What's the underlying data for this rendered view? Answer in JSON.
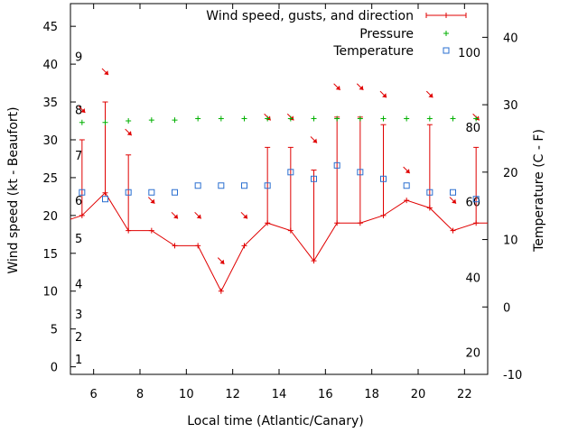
{
  "chart_data": {
    "type": "line",
    "xlabel": "Local time (Atlantic/Canary)",
    "ylabel": "Wind speed (kt - Beaufort)",
    "y2label": "Temperature (C - F)",
    "xlim": [
      5,
      23
    ],
    "ylim": [
      -1,
      48
    ],
    "y2lim": [
      -10,
      45
    ],
    "x_ticks": [
      6,
      8,
      10,
      12,
      14,
      16,
      18,
      20,
      22
    ],
    "y_ticks": [
      0,
      5,
      10,
      15,
      20,
      25,
      30,
      35,
      40,
      45
    ],
    "y2_ticks": [
      -10,
      0,
      10,
      20,
      30,
      40
    ],
    "beaufort_labels": [
      {
        "label": "1",
        "kt": 1
      },
      {
        "label": "2",
        "kt": 4
      },
      {
        "label": "3",
        "kt": 7
      },
      {
        "label": "4",
        "kt": 11
      },
      {
        "label": "5",
        "kt": 17
      },
      {
        "label": "6",
        "kt": 22
      },
      {
        "label": "7",
        "kt": 28
      },
      {
        "label": "8",
        "kt": 34
      },
      {
        "label": "9",
        "kt": 41
      }
    ],
    "fahrenheit_labels": [
      {
        "label": "20",
        "c": -6.7
      },
      {
        "label": "40",
        "c": 4.4
      },
      {
        "label": "60",
        "c": 15.6
      },
      {
        "label": "80",
        "c": 26.7
      },
      {
        "label": "100",
        "c": 37.8
      }
    ],
    "legend": {
      "wind": "Wind speed, gusts, and direction",
      "pressure": "Pressure",
      "temperature": "Temperature"
    },
    "colors": {
      "wind": "#e00000",
      "pressure": "#00b000",
      "temperature": "#2a6fd0"
    },
    "wind": {
      "x": [
        5,
        5.5,
        6.5,
        7.5,
        8.5,
        9.5,
        10.5,
        11.5,
        12.5,
        13.5,
        14.5,
        15.5,
        16.5,
        17.5,
        18.5,
        19.5,
        20.5,
        21.5,
        22.5,
        23
      ],
      "speed": [
        19.5,
        20,
        23,
        18,
        18,
        16,
        16,
        10,
        16,
        19,
        18,
        14,
        19,
        19,
        20,
        22,
        21,
        18,
        19,
        19
      ],
      "gust": [
        null,
        30,
        35,
        28,
        null,
        null,
        null,
        null,
        null,
        29,
        29,
        26,
        33,
        33,
        32,
        null,
        32,
        null,
        29,
        null
      ]
    },
    "wind_arrows": [
      {
        "x": 5.5,
        "y": 34,
        "dir": 315
      },
      {
        "x": 6.5,
        "y": 39,
        "dir": 315
      },
      {
        "x": 7.5,
        "y": 31,
        "dir": 315
      },
      {
        "x": 8.5,
        "y": 22,
        "dir": 315
      },
      {
        "x": 9.5,
        "y": 20,
        "dir": 315
      },
      {
        "x": 10.5,
        "y": 20,
        "dir": 315
      },
      {
        "x": 11.5,
        "y": 14,
        "dir": 315
      },
      {
        "x": 12.5,
        "y": 20,
        "dir": 315
      },
      {
        "x": 13.5,
        "y": 33,
        "dir": 315
      },
      {
        "x": 14.5,
        "y": 33,
        "dir": 315
      },
      {
        "x": 15.5,
        "y": 30,
        "dir": 315
      },
      {
        "x": 16.5,
        "y": 37,
        "dir": 315
      },
      {
        "x": 17.5,
        "y": 37,
        "dir": 315
      },
      {
        "x": 18.5,
        "y": 36,
        "dir": 315
      },
      {
        "x": 19.5,
        "y": 26,
        "dir": 315
      },
      {
        "x": 20.5,
        "y": 36,
        "dir": 315
      },
      {
        "x": 21.5,
        "y": 22,
        "dir": 315
      },
      {
        "x": 22.5,
        "y": 33,
        "dir": 315
      }
    ],
    "pressure": {
      "x": [
        5.5,
        6.5,
        7.5,
        8.5,
        9.5,
        10.5,
        11.5,
        12.5,
        13.5,
        14.5,
        15.5,
        16.5,
        17.5,
        18.5,
        19.5,
        20.5,
        21.5,
        22.5
      ],
      "y": [
        32.3,
        32.3,
        32.5,
        32.6,
        32.6,
        32.8,
        32.8,
        32.8,
        32.8,
        32.8,
        32.8,
        32.8,
        32.8,
        32.8,
        32.8,
        32.8,
        32.8,
        32.8
      ]
    },
    "temperature": {
      "x": [
        5.5,
        6.5,
        7.5,
        8.5,
        9.5,
        10.5,
        11.5,
        12.5,
        13.5,
        14.5,
        15.5,
        16.5,
        17.5,
        18.5,
        19.5,
        20.5,
        21.5,
        22.5
      ],
      "c": [
        17,
        16,
        17,
        17,
        17,
        18,
        18,
        18,
        18,
        20,
        19,
        21,
        20,
        19,
        18,
        17,
        17,
        16
      ]
    }
  }
}
